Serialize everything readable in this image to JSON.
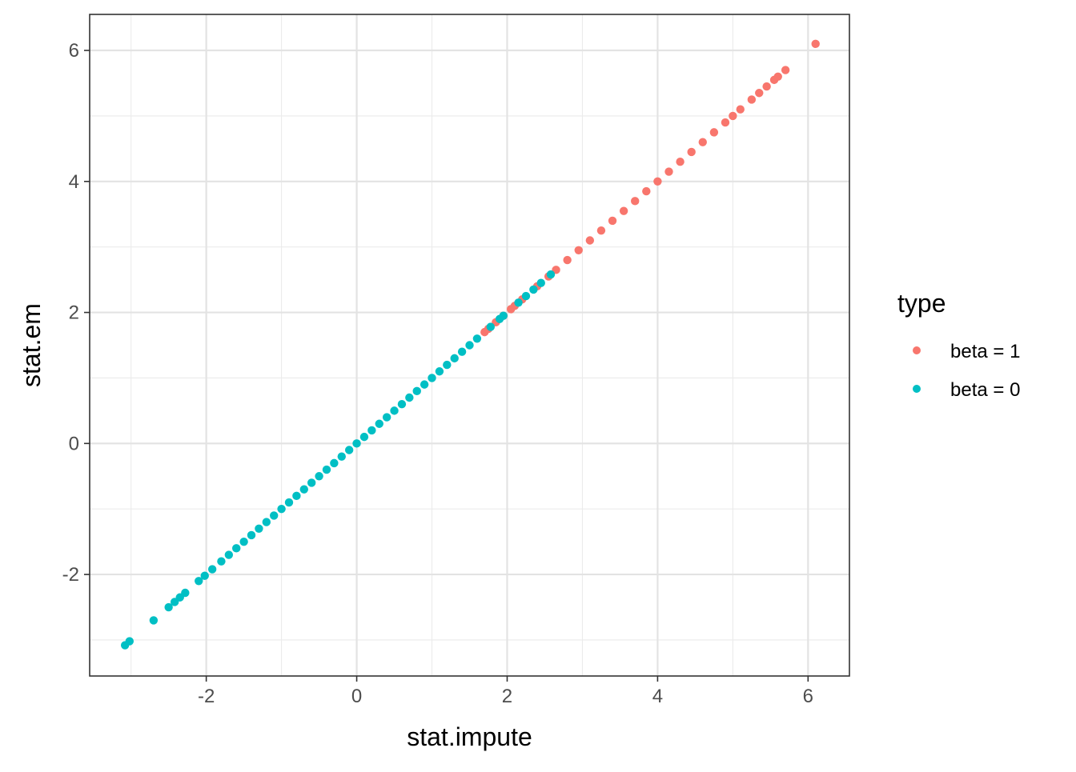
{
  "chart_data": {
    "type": "scatter",
    "xlabel": "stat.impute",
    "ylabel": "stat.em",
    "xlim": [
      -3.55,
      6.55
    ],
    "ylim": [
      -3.55,
      6.55
    ],
    "x_ticks": [
      -2,
      0,
      2,
      4,
      6
    ],
    "y_ticks": [
      -2,
      0,
      2,
      4,
      6
    ],
    "x_tick_labels": [
      "-2",
      "0",
      "2",
      "4",
      "6"
    ],
    "y_tick_labels": [
      "-2",
      "0",
      "2",
      "4",
      "6"
    ],
    "grid": true,
    "legend": {
      "title": "type",
      "position": "right",
      "entries": [
        {
          "label": "beta = 1",
          "color": "#F8766D"
        },
        {
          "label": "beta = 0",
          "color": "#00BFC4"
        }
      ]
    },
    "series": [
      {
        "name": "beta = 1",
        "color": "#F8766D",
        "points": [
          [
            1.7,
            1.7
          ],
          [
            1.75,
            1.75
          ],
          [
            1.85,
            1.85
          ],
          [
            1.95,
            1.95
          ],
          [
            2.05,
            2.05
          ],
          [
            2.1,
            2.1
          ],
          [
            2.2,
            2.2
          ],
          [
            2.4,
            2.4
          ],
          [
            2.55,
            2.55
          ],
          [
            2.65,
            2.65
          ],
          [
            2.8,
            2.8
          ],
          [
            2.95,
            2.95
          ],
          [
            3.1,
            3.1
          ],
          [
            3.25,
            3.25
          ],
          [
            3.4,
            3.4
          ],
          [
            3.55,
            3.55
          ],
          [
            3.7,
            3.7
          ],
          [
            3.85,
            3.85
          ],
          [
            4.0,
            4.0
          ],
          [
            4.15,
            4.15
          ],
          [
            4.3,
            4.3
          ],
          [
            4.45,
            4.45
          ],
          [
            4.6,
            4.6
          ],
          [
            4.75,
            4.75
          ],
          [
            4.9,
            4.9
          ],
          [
            5.0,
            5.0
          ],
          [
            5.1,
            5.1
          ],
          [
            5.25,
            5.25
          ],
          [
            5.35,
            5.35
          ],
          [
            5.45,
            5.45
          ],
          [
            5.55,
            5.55
          ],
          [
            5.6,
            5.6
          ],
          [
            5.7,
            5.7
          ],
          [
            6.1,
            6.1
          ]
        ]
      },
      {
        "name": "beta = 0",
        "color": "#00BFC4",
        "points": [
          [
            -3.08,
            -3.08
          ],
          [
            -3.02,
            -3.02
          ],
          [
            -2.7,
            -2.7
          ],
          [
            -2.5,
            -2.5
          ],
          [
            -2.42,
            -2.42
          ],
          [
            -2.35,
            -2.35
          ],
          [
            -2.28,
            -2.28
          ],
          [
            -2.1,
            -2.1
          ],
          [
            -2.02,
            -2.02
          ],
          [
            -1.92,
            -1.92
          ],
          [
            -1.8,
            -1.8
          ],
          [
            -1.7,
            -1.7
          ],
          [
            -1.6,
            -1.6
          ],
          [
            -1.5,
            -1.5
          ],
          [
            -1.4,
            -1.4
          ],
          [
            -1.3,
            -1.3
          ],
          [
            -1.2,
            -1.2
          ],
          [
            -1.1,
            -1.1
          ],
          [
            -1.0,
            -1.0
          ],
          [
            -0.9,
            -0.9
          ],
          [
            -0.8,
            -0.8
          ],
          [
            -0.7,
            -0.7
          ],
          [
            -0.6,
            -0.6
          ],
          [
            -0.5,
            -0.5
          ],
          [
            -0.4,
            -0.4
          ],
          [
            -0.3,
            -0.3
          ],
          [
            -0.2,
            -0.2
          ],
          [
            -0.1,
            -0.1
          ],
          [
            0.0,
            0.0
          ],
          [
            0.1,
            0.1
          ],
          [
            0.2,
            0.2
          ],
          [
            0.3,
            0.3
          ],
          [
            0.4,
            0.4
          ],
          [
            0.5,
            0.5
          ],
          [
            0.6,
            0.6
          ],
          [
            0.7,
            0.7
          ],
          [
            0.8,
            0.8
          ],
          [
            0.9,
            0.9
          ],
          [
            1.0,
            1.0
          ],
          [
            1.1,
            1.1
          ],
          [
            1.2,
            1.2
          ],
          [
            1.3,
            1.3
          ],
          [
            1.4,
            1.4
          ],
          [
            1.5,
            1.5
          ],
          [
            1.6,
            1.6
          ],
          [
            1.78,
            1.78
          ],
          [
            1.9,
            1.9
          ],
          [
            1.95,
            1.95
          ],
          [
            2.15,
            2.15
          ],
          [
            2.25,
            2.25
          ],
          [
            2.35,
            2.35
          ],
          [
            2.45,
            2.45
          ],
          [
            2.58,
            2.58
          ]
        ]
      }
    ]
  }
}
